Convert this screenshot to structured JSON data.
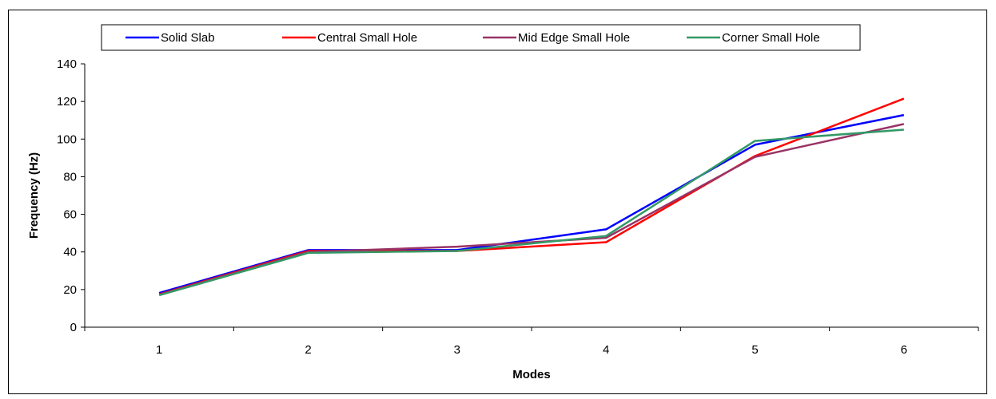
{
  "chart_data": {
    "type": "line",
    "title": "",
    "xlabel": "Modes",
    "ylabel": "Frequency (Hz)",
    "categories": [
      "1",
      "2",
      "3",
      "4",
      "5",
      "6"
    ],
    "ylim": [
      0,
      140
    ],
    "yticks": [
      0,
      20,
      40,
      60,
      80,
      100,
      120,
      140
    ],
    "grid": false,
    "legend_position": "top",
    "series": [
      {
        "name": "Solid Slab",
        "color": "#0000ff",
        "values": [
          18.2,
          41.0,
          41.0,
          52.0,
          97.0,
          112.8
        ]
      },
      {
        "name": "Central Small Hole",
        "color": "#ff0000",
        "values": [
          17.5,
          40.5,
          40.5,
          45.2,
          91.0,
          121.5
        ]
      },
      {
        "name": "Mid Edge Small Hole",
        "color": "#993366",
        "values": [
          17.2,
          40.0,
          42.8,
          47.5,
          90.5,
          108.0
        ]
      },
      {
        "name": "Corner Small Hole",
        "color": "#339966",
        "values": [
          17.0,
          39.5,
          40.5,
          48.5,
          99.0,
          105.0
        ]
      }
    ]
  }
}
